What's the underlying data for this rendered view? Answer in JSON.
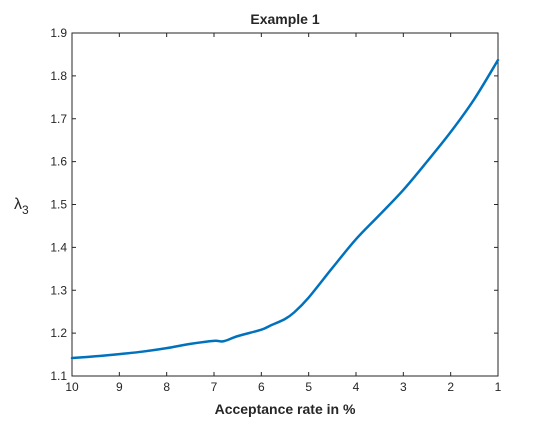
{
  "chart_data": {
    "type": "line",
    "title": "Example 1",
    "xlabel": "Acceptance rate in %",
    "ylabel": {
      "symbol": "λ",
      "subscript": "3"
    },
    "xlim": [
      1,
      10
    ],
    "ylim": [
      1.1,
      1.9
    ],
    "x_reversed": true,
    "x_ticks": [
      10,
      9,
      8,
      7,
      6,
      5,
      4,
      3,
      2,
      1
    ],
    "y_ticks": [
      "1.1",
      "1.2",
      "1.3",
      "1.4",
      "1.5",
      "1.6",
      "1.7",
      "1.8",
      "1.9"
    ],
    "grid": false,
    "line_color": "#0072BD",
    "series": [
      {
        "x": [
          10,
          9.5,
          9,
          8.5,
          8,
          7.5,
          7,
          6.8,
          6.5,
          6,
          5.8,
          5.5,
          5.3,
          5,
          4.5,
          4,
          3.5,
          3,
          2.5,
          2,
          1.5,
          1
        ],
        "y": [
          1.142,
          1.146,
          1.151,
          1.157,
          1.165,
          1.175,
          1.182,
          1.181,
          1.193,
          1.208,
          1.218,
          1.233,
          1.249,
          1.283,
          1.352,
          1.419,
          1.476,
          1.534,
          1.6,
          1.669,
          1.746,
          1.837
        ]
      }
    ]
  }
}
